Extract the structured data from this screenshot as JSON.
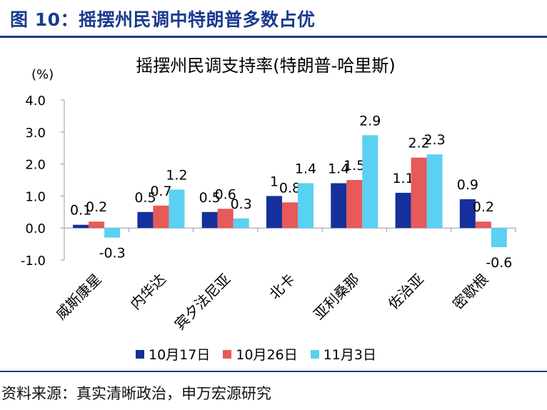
{
  "figure_title": "图 10：摇摆州民调中特朗普多数占优",
  "source_note": "资料来源：真实清晰政治，申万宏源研究",
  "colors": {
    "title": "#1a3a8f",
    "series": [
      "#15309a",
      "#e8595a",
      "#5ad0f2"
    ]
  },
  "chart_data": {
    "type": "bar",
    "title": "摇摆州民调支持率(特朗普-哈里斯)",
    "ylabel": "(%)",
    "ylim": [
      -1.0,
      4.0
    ],
    "yticks": [
      "4.0",
      "3.0",
      "2.0",
      "1.0",
      "0.0",
      "-1.0"
    ],
    "categories": [
      "威斯康星",
      "内华达",
      "宾夕法尼亚",
      "北卡",
      "亚利桑那",
      "佐治亚",
      "密歇根"
    ],
    "series": [
      {
        "name": "10月17日",
        "values": [
          0.1,
          0.5,
          0.5,
          1.0,
          1.4,
          1.1,
          0.9
        ],
        "labels": [
          "0.1",
          "0.5",
          "0.5",
          "1",
          "1.4",
          "1.1",
          "0.9"
        ]
      },
      {
        "name": "10月26日",
        "values": [
          0.2,
          0.7,
          0.6,
          0.8,
          1.5,
          2.2,
          0.2
        ],
        "labels": [
          "0.2",
          "0.7",
          "0.6",
          "0.8",
          "1.5",
          "2.2",
          "0.2"
        ]
      },
      {
        "name": "11月3日",
        "values": [
          -0.3,
          1.2,
          0.3,
          1.4,
          2.9,
          2.3,
          -0.6
        ],
        "labels": [
          "-0.3",
          "1.2",
          "0.3",
          "1.4",
          "2.9",
          "2.3",
          "-0.6"
        ]
      }
    ]
  }
}
